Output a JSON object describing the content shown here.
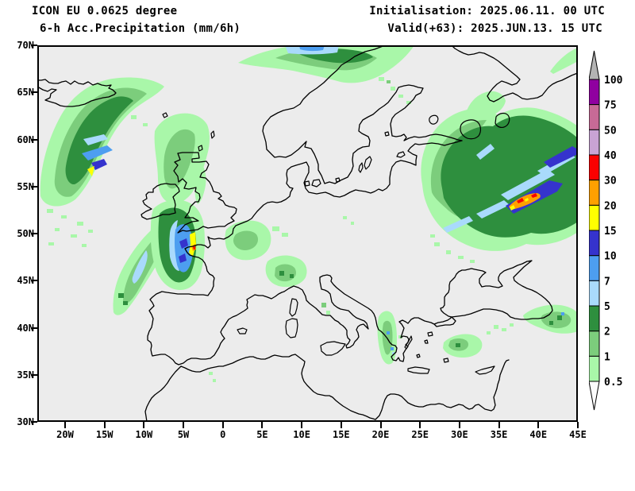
{
  "header": {
    "model": "ICON EU 0.0625 degree",
    "product": "6-h Acc.Precipitation (mm/6h)",
    "init": "Initialisation: 2025.06.11. 00 UTC",
    "valid": "Valid(+63): 2025.JUN.13. 15 UTC"
  },
  "axes": {
    "lat_labels": [
      "70N",
      "65N",
      "60N",
      "55N",
      "50N",
      "45N",
      "40N",
      "35N",
      "30N"
    ],
    "lon_labels": [
      "20W",
      "15W",
      "10W",
      "5W",
      "0",
      "5E",
      "10E",
      "15E",
      "20E",
      "25E",
      "30E",
      "35E",
      "40E",
      "45E"
    ]
  },
  "colorbar": {
    "unit": "mm/6h",
    "levels": [
      "100",
      "75",
      "50",
      "40",
      "30",
      "20",
      "15",
      "10",
      "7",
      "5",
      "2",
      "1",
      "0.5"
    ],
    "segment_colors": [
      "#9000a0",
      "#c76a96",
      "#c9a3d4",
      "#fa0000",
      "#ffa000",
      "#ffff00",
      "#3533cd",
      "#4d9ef0",
      "#a9dafc",
      "#2e8f3e",
      "#7ccd7c",
      "#a9f7a9"
    ],
    "over_color": "#b3b3b3",
    "under_color": "#fbfbfb"
  },
  "palette": {
    "green_light": "#a9f7a9",
    "green_med": "#7ccd7c",
    "green_dark": "#2e8f3e",
    "blue_light": "#a9dafc",
    "blue_med": "#4d9ef0",
    "blue_dark": "#3533cd",
    "yellow": "#ffff00",
    "orange": "#ffa000",
    "red": "#fa0000",
    "map_bg": "#ececec",
    "coast": "#000000",
    "text": "#000000"
  },
  "chart_data": {
    "type": "heatmap",
    "title": "ICON EU 0.0625 degree 6-h Acc.Precipitation (mm/6h)",
    "init_time": "2025.06.11. 00 UTC",
    "valid_time": "2025.JUN.13. 15 UTC",
    "lead_hours": 63,
    "units": "mm/6h",
    "projection": "lat-lon equirectangular",
    "lat_ticks_deg": [
      70,
      65,
      60,
      55,
      50,
      45,
      40,
      35,
      30
    ],
    "lon_ticks_deg": [
      -20,
      -15,
      -10,
      -5,
      0,
      5,
      10,
      15,
      20,
      25,
      30,
      35,
      40,
      45
    ],
    "levels_mm": [
      0.5,
      1,
      2,
      5,
      7,
      10,
      15,
      20,
      30,
      40,
      50,
      75,
      100
    ],
    "legend_position": "right",
    "grid": false,
    "regions": [
      {
        "area": "North Atlantic SE of Iceland",
        "range_mm": "2-10",
        "cores_mm": "10-20 with small 15-20 spot"
      },
      {
        "area": "Scotland and northern Britain",
        "range_mm": "0.5-2"
      },
      {
        "area": "English Channel / NW France band",
        "range_mm": "5-15",
        "cores_mm": "15-30 streaks, small 30-40 spot"
      },
      {
        "area": "Bay of Biscay / NW Spain band",
        "range_mm": "0.5-7"
      },
      {
        "area": "Benelux / W Germany",
        "range_mm": "0.5-2"
      },
      {
        "area": "Alps / N Italy",
        "range_mm": "0.5-5"
      },
      {
        "area": "N Scandinavia along top edge",
        "range_mm": "2-10"
      },
      {
        "area": "W Russia / Baltic large system",
        "range_mm": "2-15",
        "cores_mm": "15-40 banded, red spots 30-40"
      },
      {
        "area": "W Greece",
        "range_mm": "1-7"
      },
      {
        "area": "S Turkey and NE Turkey / Caucasus",
        "range_mm": "0.5-7"
      }
    ]
  }
}
